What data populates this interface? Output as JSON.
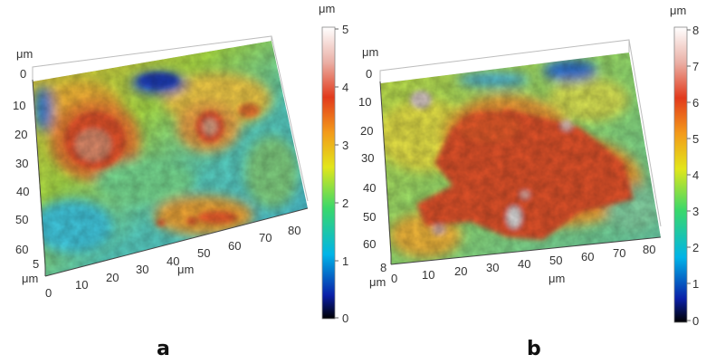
{
  "panels": [
    {
      "label": "a",
      "unit": "μm",
      "y_axis_ticks": [
        "0",
        "10",
        "20",
        "30",
        "40",
        "50",
        "60"
      ],
      "x_axis_ticks": [
        "0",
        "10",
        "20",
        "30",
        "40",
        "50",
        "60",
        "70",
        "80"
      ],
      "z_axis_tick": "5",
      "colorbar_ticks": [
        "5",
        "4",
        "3",
        "2",
        "1",
        "0"
      ],
      "colorbar_range": [
        0,
        5
      ]
    },
    {
      "label": "b",
      "unit": "μm",
      "y_axis_ticks": [
        "0",
        "10",
        "20",
        "30",
        "40",
        "50",
        "60"
      ],
      "x_axis_ticks": [
        "0",
        "10",
        "20",
        "30",
        "40",
        "50",
        "60",
        "70",
        "80"
      ],
      "z_axis_tick": "8",
      "colorbar_ticks": [
        "8",
        "7",
        "6",
        "5",
        "4",
        "3",
        "2",
        "1",
        "0"
      ],
      "colorbar_range": [
        0,
        8
      ]
    }
  ],
  "colormap": [
    "#000000",
    "#0033cc",
    "#00c8e6",
    "#36d86a",
    "#d8e51e",
    "#f7a21b",
    "#e4441b",
    "#eab3a8",
    "#ffffff"
  ]
}
